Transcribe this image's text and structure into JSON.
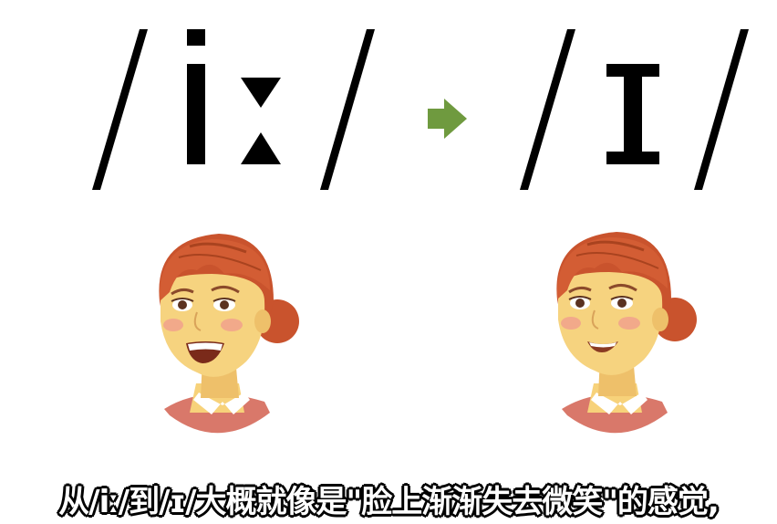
{
  "symbols": {
    "left": "/iː/",
    "right": "/ɪ/"
  },
  "arrow": {
    "color": "#6f9a3f"
  },
  "subtitle": "从/iː/到/ɪ/大概就像是\"脸上渐渐失去微笑\"的感觉,"
}
